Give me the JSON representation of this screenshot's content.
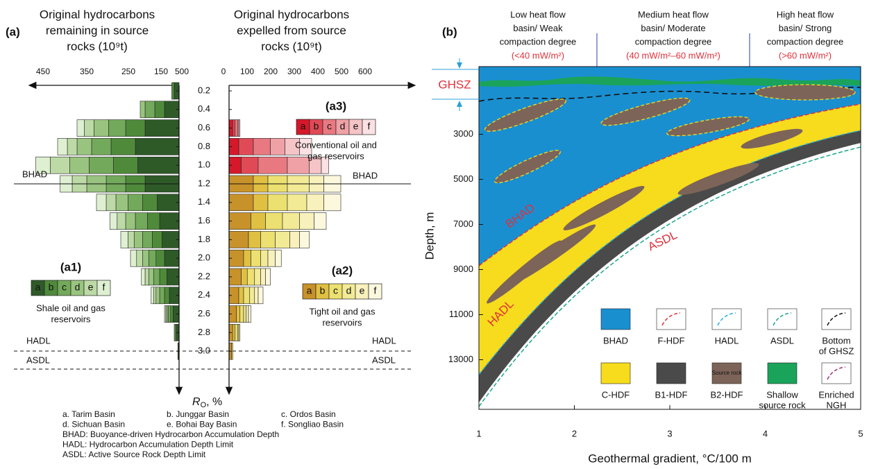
{
  "panel_a": {
    "label": "(a)",
    "left_title": [
      "Original hydrocarbons",
      "remaining in source",
      "rocks (10⁹t)"
    ],
    "right_title": [
      "Original hydrocarbons",
      "expelled from source",
      "rocks (10⁹t)"
    ],
    "left_ticks": [
      450,
      350,
      250,
      150,
      500
    ],
    "right_ticks": [
      0,
      100,
      200,
      300,
      400,
      500,
      600
    ],
    "ro_ticks": [
      0.2,
      0.4,
      0.6,
      0.8,
      {
        "value": 1,
        "label": "1.0"
      },
      1.2,
      1.4,
      1.6,
      1.8,
      {
        "value": 2,
        "label": "2.0"
      },
      2.2,
      2.4,
      2.6,
      2.8,
      {
        "value": 3,
        "label": "3.0"
      }
    ],
    "ro_label": {
      "symbol": "R",
      "subscript": "O",
      "unit": ", %"
    },
    "bhad": "BHAD",
    "hadl": "HADL",
    "asdl": "ASDL",
    "letters": [
      "a",
      "b",
      "c",
      "d",
      "e",
      "f"
    ],
    "a1": {
      "label": "(a1)",
      "caption": [
        "Shale oil and gas",
        "reservoirs"
      ],
      "colors": [
        "#2e5a28",
        "#4f8a3b",
        "#73a95b",
        "#99c47f",
        "#bddaa6",
        "#def0d1"
      ],
      "rows": [
        {
          "ro": 0.2,
          "values": [
            20,
            10,
            0,
            0,
            0,
            0
          ]
        },
        {
          "ro": 0.4,
          "values": [
            60,
            40,
            40,
            20,
            0,
            0
          ]
        },
        {
          "ro": 0.6,
          "values": [
            140,
            80,
            70,
            60,
            40,
            30
          ]
        },
        {
          "ro": 0.8,
          "values": [
            180,
            100,
            80,
            60,
            40,
            40
          ]
        },
        {
          "ro": 1,
          "values": [
            170,
            100,
            100,
            80,
            80,
            60
          ]
        },
        {
          "ro": 1.2,
          "values": [
            140,
            80,
            80,
            80,
            60,
            50
          ]
        },
        {
          "ro": 1.4,
          "values": [
            90,
            60,
            60,
            50,
            40,
            40
          ]
        },
        {
          "ro": 1.6,
          "values": [
            80,
            50,
            50,
            40,
            35,
            30
          ]
        },
        {
          "ro": 1.8,
          "values": [
            70,
            40,
            40,
            35,
            25,
            30
          ]
        },
        {
          "ro": 2,
          "values": [
            60,
            35,
            30,
            25,
            25,
            25
          ]
        },
        {
          "ro": 2.2,
          "values": [
            50,
            30,
            25,
            20,
            15,
            15
          ]
        },
        {
          "ro": 2.4,
          "values": [
            40,
            20,
            20,
            15,
            10,
            10
          ]
        },
        {
          "ro": 2.6,
          "values": [
            25,
            10,
            10,
            5,
            5,
            5
          ]
        },
        {
          "ro": 2.8,
          "values": [
            10,
            5,
            5,
            0,
            0,
            0
          ]
        },
        {
          "ro": 3,
          "values": [
            5,
            0,
            0,
            0,
            0,
            0
          ]
        }
      ]
    },
    "a3": {
      "label": "(a3)",
      "caption": [
        "Conventional oil and",
        "gas reservoirs"
      ],
      "colors": [
        "#d6182b",
        "#e04a56",
        "#e87981",
        "#f0a1a6",
        "#f5c4c7",
        "#fbe1e3"
      ],
      "rows": [
        {
          "ro": 0.6,
          "values": [
            15,
            10,
            10,
            5,
            5,
            0
          ]
        },
        {
          "ro": 0.8,
          "values": [
            40,
            60,
            70,
            60,
            60,
            50
          ]
        },
        {
          "ro": 1,
          "values": [
            50,
            70,
            120,
            90,
            50,
            30
          ]
        }
      ]
    },
    "a2": {
      "label": "(a2)",
      "caption": [
        "Tight oil and gas",
        "reservoirs"
      ],
      "colors": [
        "#c8922b",
        "#e0c042",
        "#ece071",
        "#f3ea96",
        "#f8f1bc",
        "#fcf8de"
      ],
      "rows": [
        {
          "ro": 1.2,
          "values": [
            100,
            60,
            80,
            90,
            60,
            70
          ]
        },
        {
          "ro": 1.4,
          "values": [
            100,
            60,
            80,
            80,
            70,
            70
          ]
        },
        {
          "ro": 1.6,
          "values": [
            90,
            60,
            70,
            70,
            60,
            50
          ]
        },
        {
          "ro": 1.8,
          "values": [
            80,
            50,
            60,
            60,
            40,
            40
          ]
        },
        {
          "ro": 2,
          "values": [
            60,
            30,
            40,
            30,
            30,
            25
          ]
        },
        {
          "ro": 2.2,
          "values": [
            50,
            25,
            30,
            25,
            20,
            20
          ]
        },
        {
          "ro": 2.4,
          "values": [
            40,
            20,
            25,
            20,
            15,
            20
          ]
        },
        {
          "ro": 2.6,
          "values": [
            30,
            15,
            15,
            10,
            10,
            10
          ]
        },
        {
          "ro": 2.8,
          "values": [
            15,
            10,
            10,
            5,
            5,
            0
          ]
        },
        {
          "ro": 3,
          "values": [
            10,
            5,
            0,
            0,
            0,
            0
          ]
        }
      ]
    },
    "notes": [
      [
        "a. Tarim Basin",
        "b. Junggar Basin",
        "c. Ordos Basin"
      ],
      [
        "d. Sichuan Basin",
        "e. Bohai Bay Basin",
        "f. Songliao Basin"
      ],
      [
        "BHAD: Buoyance-driven Hydrocarbon Accumulation Depth"
      ],
      [
        "HADL: Hydrocarbon Accumulation Depth Limit"
      ],
      [
        "ASDL: Active Source Rock Depth Limit"
      ]
    ]
  },
  "panel_b": {
    "label": "(b)",
    "columns": [
      {
        "lines": [
          "Low heat flow",
          "basin/ Weak",
          "compaction degree"
        ],
        "flow": "(<40 mW/m²)"
      },
      {
        "lines": [
          "Medium heat flow",
          "basin/ Moderate",
          "compaction degree"
        ],
        "flow": "(40 mW/m²–60 mW/m²)"
      },
      {
        "lines": [
          "High heat flow",
          "basin/ Strong",
          "compaction degree"
        ],
        "flow": "(>60 mW/m²)"
      }
    ],
    "ghsz": "GHSZ",
    "y_label": "Depth, m",
    "x_label": "Geothermal gradient, °C/100 m",
    "xticks": [
      1,
      2,
      3,
      4,
      5
    ],
    "xlim": [
      1,
      5
    ],
    "yticks": [
      3000,
      5000,
      7000,
      9000,
      11000,
      13000
    ],
    "ylim": [
      0,
      15200
    ],
    "curve_labels": {
      "bhad": "BHAD",
      "hadl": "HADL",
      "asdl": "ASDL"
    },
    "legend": [
      [
        "BHAD"
      ],
      [
        "F-HDF"
      ],
      [
        "HADL"
      ],
      [
        "ASDL"
      ],
      [
        "Bottom",
        "of GHSZ"
      ],
      [
        "C-HDF"
      ],
      [
        "B1-HDF"
      ],
      [
        "B2-HDF"
      ],
      [
        "Shallow",
        "source rock"
      ],
      [
        "Enriched",
        "NGH"
      ]
    ],
    "source_rock_box": "Source rock"
  }
}
